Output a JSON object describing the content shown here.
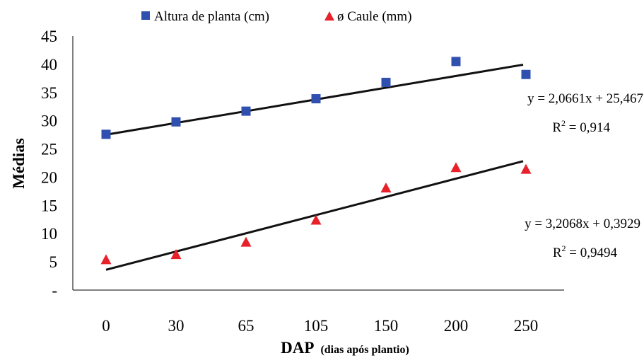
{
  "chart_data": {
    "type": "scatter",
    "categories": [
      "0",
      "30",
      "65",
      "105",
      "150",
      "200",
      "250"
    ],
    "xlabel_main": "DAP",
    "xlabel_sub": "(dias após plantio)",
    "ylabel": "Médias",
    "ylim": [
      0,
      45
    ],
    "yticks": [
      "-",
      "5",
      "10",
      "15",
      "20",
      "25",
      "30",
      "35",
      "40",
      "45"
    ],
    "grid": false,
    "legend_position": "top",
    "series": [
      {
        "name": "Altura de planta (cm)",
        "marker": "square",
        "color": "#3050B0",
        "values": [
          27.6,
          29.8,
          31.7,
          33.9,
          36.8,
          40.5,
          38.2
        ],
        "trendline": {
          "slope": 2.0661,
          "intercept": 25.467,
          "equation": "y = 2,0661x + 25,467",
          "r2_label": "R",
          "r2_sup": "2",
          "r2_value": " = 0,914"
        }
      },
      {
        "name": "ø Caule (mm)",
        "marker": "triangle",
        "color": "#E8202A",
        "values": [
          5.3,
          6.2,
          8.4,
          12.3,
          18.0,
          21.6,
          21.3
        ],
        "trendline": {
          "slope": 3.2068,
          "intercept": 0.3929,
          "equation": "y = 3,2068x + 0,3929",
          "r2_label": "R",
          "r2_sup": "2",
          "r2_value": " = 0,9494"
        }
      }
    ]
  }
}
